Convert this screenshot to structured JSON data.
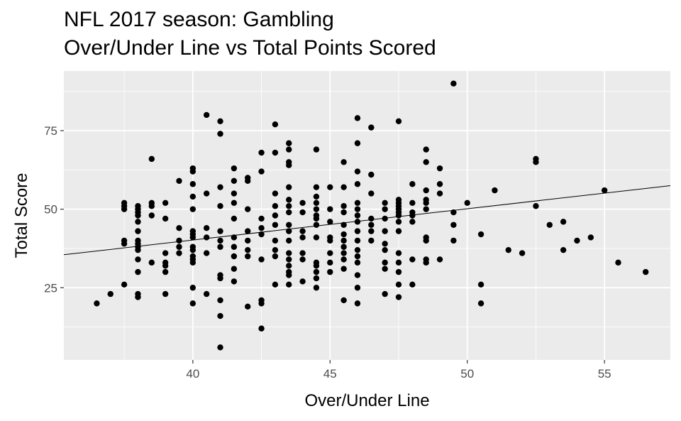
{
  "chart_data": {
    "type": "scatter",
    "title_lines": [
      "NFL 2017 season: Gambling",
      "Over/Under Line vs Total Points Scored"
    ],
    "xlabel": "Over/Under Line",
    "ylabel": "Total Score",
    "xlim": [
      35.3,
      57.4
    ],
    "ylim": [
      2,
      94
    ],
    "x_ticks": [
      40,
      45,
      50,
      55
    ],
    "y_ticks": [
      25,
      50,
      75
    ],
    "grid": true,
    "trend_line": {
      "x": [
        35.3,
        57.4
      ],
      "y": [
        35.5,
        57.5
      ]
    },
    "points": [
      {
        "x": 36.5,
        "y": 20
      },
      {
        "x": 37,
        "y": 23
      },
      {
        "x": 37.5,
        "y": 26
      },
      {
        "x": 37.5,
        "y": 39
      },
      {
        "x": 37.5,
        "y": 40
      },
      {
        "x": 37.5,
        "y": 50
      },
      {
        "x": 37.5,
        "y": 51
      },
      {
        "x": 37.5,
        "y": 52
      },
      {
        "x": 38,
        "y": 22
      },
      {
        "x": 38,
        "y": 23
      },
      {
        "x": 38,
        "y": 30
      },
      {
        "x": 38,
        "y": 34
      },
      {
        "x": 38,
        "y": 37
      },
      {
        "x": 38,
        "y": 38
      },
      {
        "x": 38,
        "y": 39
      },
      {
        "x": 38,
        "y": 40
      },
      {
        "x": 38,
        "y": 43
      },
      {
        "x": 38,
        "y": 46
      },
      {
        "x": 38,
        "y": 48
      },
      {
        "x": 38,
        "y": 49
      },
      {
        "x": 38,
        "y": 50
      },
      {
        "x": 38,
        "y": 51
      },
      {
        "x": 38.5,
        "y": 33
      },
      {
        "x": 38.5,
        "y": 48
      },
      {
        "x": 38.5,
        "y": 51
      },
      {
        "x": 38.5,
        "y": 52
      },
      {
        "x": 38.5,
        "y": 66
      },
      {
        "x": 39,
        "y": 23
      },
      {
        "x": 39,
        "y": 30
      },
      {
        "x": 39,
        "y": 32
      },
      {
        "x": 39,
        "y": 33
      },
      {
        "x": 39,
        "y": 36
      },
      {
        "x": 39,
        "y": 47
      },
      {
        "x": 39,
        "y": 52
      },
      {
        "x": 39.5,
        "y": 36
      },
      {
        "x": 39.5,
        "y": 38
      },
      {
        "x": 39.5,
        "y": 40
      },
      {
        "x": 39.5,
        "y": 44
      },
      {
        "x": 39.5,
        "y": 59
      },
      {
        "x": 40,
        "y": 20
      },
      {
        "x": 40,
        "y": 25
      },
      {
        "x": 40,
        "y": 33
      },
      {
        "x": 40,
        "y": 34
      },
      {
        "x": 40,
        "y": 35
      },
      {
        "x": 40,
        "y": 37
      },
      {
        "x": 40,
        "y": 38
      },
      {
        "x": 40,
        "y": 41
      },
      {
        "x": 40,
        "y": 42
      },
      {
        "x": 40,
        "y": 43
      },
      {
        "x": 40,
        "y": 50
      },
      {
        "x": 40,
        "y": 54
      },
      {
        "x": 40,
        "y": 58
      },
      {
        "x": 40,
        "y": 62
      },
      {
        "x": 40,
        "y": 63
      },
      {
        "x": 40.5,
        "y": 23
      },
      {
        "x": 40.5,
        "y": 36
      },
      {
        "x": 40.5,
        "y": 41
      },
      {
        "x": 40.5,
        "y": 44
      },
      {
        "x": 40.5,
        "y": 55
      },
      {
        "x": 40.5,
        "y": 80
      },
      {
        "x": 41,
        "y": 6
      },
      {
        "x": 41,
        "y": 16
      },
      {
        "x": 41,
        "y": 21
      },
      {
        "x": 41,
        "y": 28
      },
      {
        "x": 41,
        "y": 29
      },
      {
        "x": 41,
        "y": 38
      },
      {
        "x": 41,
        "y": 40
      },
      {
        "x": 41,
        "y": 43
      },
      {
        "x": 41,
        "y": 51
      },
      {
        "x": 41,
        "y": 57
      },
      {
        "x": 41,
        "y": 74
      },
      {
        "x": 41,
        "y": 78
      },
      {
        "x": 41.5,
        "y": 27
      },
      {
        "x": 41.5,
        "y": 31
      },
      {
        "x": 41.5,
        "y": 35
      },
      {
        "x": 41.5,
        "y": 38
      },
      {
        "x": 41.5,
        "y": 41
      },
      {
        "x": 41.5,
        "y": 47
      },
      {
        "x": 41.5,
        "y": 52
      },
      {
        "x": 41.5,
        "y": 55
      },
      {
        "x": 41.5,
        "y": 59
      },
      {
        "x": 41.5,
        "y": 63
      },
      {
        "x": 42,
        "y": 19
      },
      {
        "x": 42,
        "y": 35
      },
      {
        "x": 42,
        "y": 37
      },
      {
        "x": 42,
        "y": 40
      },
      {
        "x": 42,
        "y": 43
      },
      {
        "x": 42,
        "y": 50
      },
      {
        "x": 42,
        "y": 59
      },
      {
        "x": 42,
        "y": 60
      },
      {
        "x": 42.5,
        "y": 12
      },
      {
        "x": 42.5,
        "y": 20
      },
      {
        "x": 42.5,
        "y": 21
      },
      {
        "x": 42.5,
        "y": 34
      },
      {
        "x": 42.5,
        "y": 42
      },
      {
        "x": 42.5,
        "y": 44
      },
      {
        "x": 42.5,
        "y": 47
      },
      {
        "x": 42.5,
        "y": 62
      },
      {
        "x": 42.5,
        "y": 68
      },
      {
        "x": 43,
        "y": 26
      },
      {
        "x": 43,
        "y": 35
      },
      {
        "x": 43,
        "y": 37
      },
      {
        "x": 43,
        "y": 40
      },
      {
        "x": 43,
        "y": 45
      },
      {
        "x": 43,
        "y": 48
      },
      {
        "x": 43,
        "y": 51
      },
      {
        "x": 43,
        "y": 55
      },
      {
        "x": 43,
        "y": 68
      },
      {
        "x": 43,
        "y": 77
      },
      {
        "x": 43.5,
        "y": 26
      },
      {
        "x": 43.5,
        "y": 29
      },
      {
        "x": 43.5,
        "y": 30
      },
      {
        "x": 43.5,
        "y": 32
      },
      {
        "x": 43.5,
        "y": 34
      },
      {
        "x": 43.5,
        "y": 36
      },
      {
        "x": 43.5,
        "y": 40
      },
      {
        "x": 43.5,
        "y": 43
      },
      {
        "x": 43.5,
        "y": 45
      },
      {
        "x": 43.5,
        "y": 49
      },
      {
        "x": 43.5,
        "y": 51
      },
      {
        "x": 43.5,
        "y": 53
      },
      {
        "x": 43.5,
        "y": 57
      },
      {
        "x": 43.5,
        "y": 64
      },
      {
        "x": 43.5,
        "y": 65
      },
      {
        "x": 43.5,
        "y": 69
      },
      {
        "x": 43.5,
        "y": 71
      },
      {
        "x": 44,
        "y": 27
      },
      {
        "x": 44,
        "y": 34
      },
      {
        "x": 44,
        "y": 36
      },
      {
        "x": 44,
        "y": 41
      },
      {
        "x": 44,
        "y": 43
      },
      {
        "x": 44,
        "y": 49
      },
      {
        "x": 44,
        "y": 52
      },
      {
        "x": 44.5,
        "y": 25
      },
      {
        "x": 44.5,
        "y": 28
      },
      {
        "x": 44.5,
        "y": 30
      },
      {
        "x": 44.5,
        "y": 32
      },
      {
        "x": 44.5,
        "y": 33
      },
      {
        "x": 44.5,
        "y": 41
      },
      {
        "x": 44.5,
        "y": 45
      },
      {
        "x": 44.5,
        "y": 47
      },
      {
        "x": 44.5,
        "y": 48
      },
      {
        "x": 44.5,
        "y": 50
      },
      {
        "x": 44.5,
        "y": 52
      },
      {
        "x": 44.5,
        "y": 54
      },
      {
        "x": 44.5,
        "y": 57
      },
      {
        "x": 44.5,
        "y": 69
      },
      {
        "x": 45,
        "y": 30
      },
      {
        "x": 45,
        "y": 33
      },
      {
        "x": 45,
        "y": 36
      },
      {
        "x": 45,
        "y": 40
      },
      {
        "x": 45,
        "y": 41
      },
      {
        "x": 45,
        "y": 46
      },
      {
        "x": 45,
        "y": 50
      },
      {
        "x": 45,
        "y": 57
      },
      {
        "x": 45.5,
        "y": 21
      },
      {
        "x": 45.5,
        "y": 31
      },
      {
        "x": 45.5,
        "y": 34
      },
      {
        "x": 45.5,
        "y": 36
      },
      {
        "x": 45.5,
        "y": 38
      },
      {
        "x": 45.5,
        "y": 40
      },
      {
        "x": 45.5,
        "y": 42
      },
      {
        "x": 45.5,
        "y": 45
      },
      {
        "x": 45.5,
        "y": 49
      },
      {
        "x": 45.5,
        "y": 51
      },
      {
        "x": 45.5,
        "y": 57
      },
      {
        "x": 45.5,
        "y": 65
      },
      {
        "x": 46,
        "y": 20
      },
      {
        "x": 46,
        "y": 25
      },
      {
        "x": 46,
        "y": 29
      },
      {
        "x": 46,
        "y": 33
      },
      {
        "x": 46,
        "y": 35
      },
      {
        "x": 46,
        "y": 37
      },
      {
        "x": 46,
        "y": 40
      },
      {
        "x": 46,
        "y": 43
      },
      {
        "x": 46,
        "y": 46
      },
      {
        "x": 46,
        "y": 48
      },
      {
        "x": 46,
        "y": 50
      },
      {
        "x": 46,
        "y": 52
      },
      {
        "x": 46,
        "y": 58
      },
      {
        "x": 46,
        "y": 62
      },
      {
        "x": 46,
        "y": 71
      },
      {
        "x": 46,
        "y": 79
      },
      {
        "x": 46.5,
        "y": 40
      },
      {
        "x": 46.5,
        "y": 43
      },
      {
        "x": 46.5,
        "y": 45
      },
      {
        "x": 46.5,
        "y": 47
      },
      {
        "x": 46.5,
        "y": 55
      },
      {
        "x": 46.5,
        "y": 61
      },
      {
        "x": 46.5,
        "y": 76
      },
      {
        "x": 47,
        "y": 23
      },
      {
        "x": 47,
        "y": 31
      },
      {
        "x": 47,
        "y": 33
      },
      {
        "x": 47,
        "y": 37
      },
      {
        "x": 47,
        "y": 39
      },
      {
        "x": 47,
        "y": 43
      },
      {
        "x": 47,
        "y": 47
      },
      {
        "x": 47,
        "y": 50
      },
      {
        "x": 47,
        "y": 52
      },
      {
        "x": 47.5,
        "y": 22
      },
      {
        "x": 47.5,
        "y": 26
      },
      {
        "x": 47.5,
        "y": 30
      },
      {
        "x": 47.5,
        "y": 33
      },
      {
        "x": 47.5,
        "y": 36
      },
      {
        "x": 47.5,
        "y": 43
      },
      {
        "x": 47.5,
        "y": 46
      },
      {
        "x": 47.5,
        "y": 48
      },
      {
        "x": 47.5,
        "y": 49
      },
      {
        "x": 47.5,
        "y": 50
      },
      {
        "x": 47.5,
        "y": 51
      },
      {
        "x": 47.5,
        "y": 52
      },
      {
        "x": 47.5,
        "y": 53
      },
      {
        "x": 47.5,
        "y": 78
      },
      {
        "x": 48,
        "y": 26
      },
      {
        "x": 48,
        "y": 34
      },
      {
        "x": 48,
        "y": 46
      },
      {
        "x": 48,
        "y": 48
      },
      {
        "x": 48,
        "y": 49
      },
      {
        "x": 48,
        "y": 52
      },
      {
        "x": 48,
        "y": 58
      },
      {
        "x": 48.5,
        "y": 33
      },
      {
        "x": 48.5,
        "y": 34
      },
      {
        "x": 48.5,
        "y": 40
      },
      {
        "x": 48.5,
        "y": 41
      },
      {
        "x": 48.5,
        "y": 50
      },
      {
        "x": 48.5,
        "y": 52
      },
      {
        "x": 48.5,
        "y": 53
      },
      {
        "x": 48.5,
        "y": 56
      },
      {
        "x": 48.5,
        "y": 65
      },
      {
        "x": 48.5,
        "y": 69
      },
      {
        "x": 49,
        "y": 34
      },
      {
        "x": 49,
        "y": 55
      },
      {
        "x": 49,
        "y": 58
      },
      {
        "x": 49,
        "y": 63
      },
      {
        "x": 49.5,
        "y": 40
      },
      {
        "x": 49.5,
        "y": 45
      },
      {
        "x": 49.5,
        "y": 49
      },
      {
        "x": 49.5,
        "y": 90
      },
      {
        "x": 50,
        "y": 52
      },
      {
        "x": 50.5,
        "y": 20
      },
      {
        "x": 50.5,
        "y": 26
      },
      {
        "x": 50.5,
        "y": 42
      },
      {
        "x": 51,
        "y": 56
      },
      {
        "x": 51.5,
        "y": 37
      },
      {
        "x": 52,
        "y": 36
      },
      {
        "x": 52.5,
        "y": 51
      },
      {
        "x": 52.5,
        "y": 65
      },
      {
        "x": 52.5,
        "y": 66
      },
      {
        "x": 53,
        "y": 45
      },
      {
        "x": 53.5,
        "y": 37
      },
      {
        "x": 53.5,
        "y": 46
      },
      {
        "x": 54,
        "y": 40
      },
      {
        "x": 54.5,
        "y": 41
      },
      {
        "x": 55,
        "y": 56
      },
      {
        "x": 55.5,
        "y": 33
      },
      {
        "x": 56.5,
        "y": 30
      }
    ]
  }
}
